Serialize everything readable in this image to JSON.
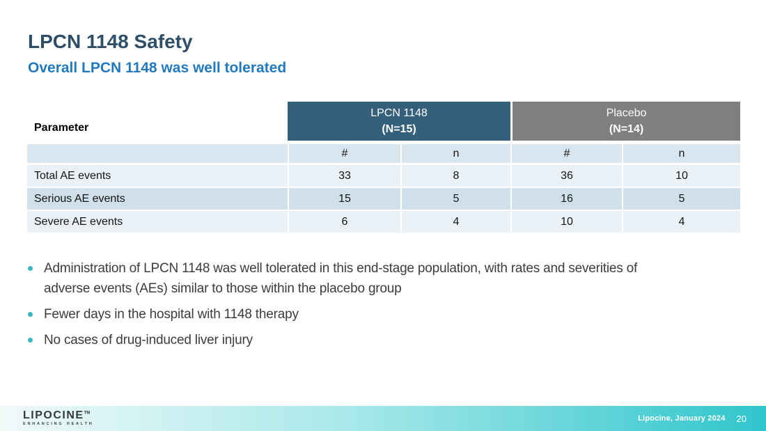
{
  "slide": {
    "title": "LPCN 1148 Safety",
    "subtitle": "Overall LPCN 1148 was well tolerated"
  },
  "table": {
    "parameter_header": "Parameter",
    "group_headers": [
      {
        "line1": "LPCN 1148",
        "line2": "(N=15)"
      },
      {
        "line1": "Placebo",
        "line2": "(N=14)"
      }
    ],
    "sub_headers": [
      "#",
      "n",
      "#",
      "n"
    ],
    "rows": [
      {
        "label": "Total AE events",
        "values": [
          "33",
          "8",
          "36",
          "10"
        ]
      },
      {
        "label": "Serious AE events",
        "values": [
          "15",
          "5",
          "16",
          "5"
        ]
      },
      {
        "label": "Severe AE events",
        "values": [
          "6",
          "4",
          "10",
          "4"
        ]
      }
    ]
  },
  "bullets": [
    "Administration of LPCN 1148 was well tolerated in this end-stage population, with rates and severities of adverse events (AEs) similar to those within the placebo group",
    "Fewer days in the hospital with 1148 therapy",
    "No cases of drug-induced liver injury"
  ],
  "footer": {
    "logo_text": "LIPOCINE",
    "logo_tm": "TM",
    "logo_tagline": "ENHANCING HEALTH",
    "credit": "Lipocine, January 2024",
    "page_number": "20"
  },
  "colors": {
    "title": "#2E4E68",
    "subtitle": "#2379BD",
    "header_lpcn": "#35607C",
    "header_placebo": "#7F7F7F",
    "subheader_row": "#D9E5EF",
    "row_light": "#EAF2F8",
    "row_dark": "#CFE0EA",
    "bullet_dot": "#3AB6C3",
    "footer_teal": "#2FC6CC"
  }
}
